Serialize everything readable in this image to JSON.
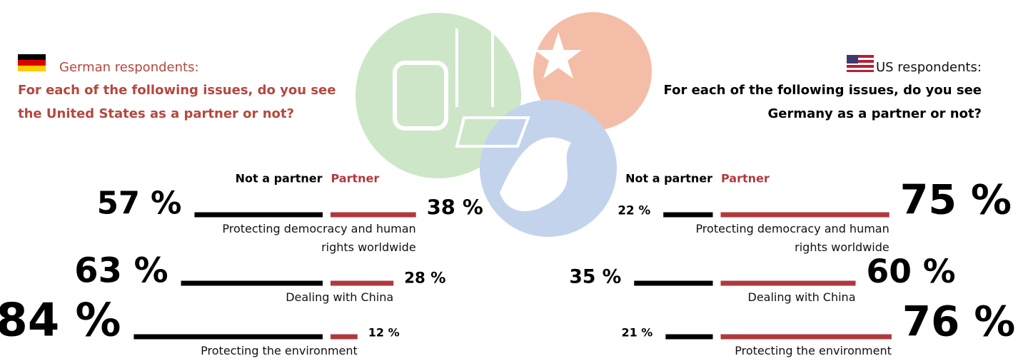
{
  "chart_data": [
    {
      "type": "bar",
      "subtitle": "German respondents:",
      "title": "For each of the following issues, do you see the United States as a partner or not?",
      "categories": [
        "Protecting democracy and human rights worldwide",
        "Dealing with China",
        "Protecting the environment"
      ],
      "series": [
        {
          "name": "Not a partner",
          "color": "#000000",
          "values": [
            57,
            63,
            84
          ],
          "value_labels": [
            "57 %",
            "63 %",
            "84 %"
          ]
        },
        {
          "name": "Partner",
          "color": "#b0393d",
          "values": [
            38,
            28,
            12
          ],
          "value_labels": [
            "38 %",
            "28 %",
            "12 %"
          ]
        }
      ]
    },
    {
      "type": "bar",
      "subtitle": "US respondents:",
      "title": "For each of the following issues, do you see Germany as a partner or not?",
      "categories": [
        "Protecting democracy and human rights worldwide",
        "Dealing with China",
        "Protecting the environment"
      ],
      "series": [
        {
          "name": "Not a partner",
          "color": "#000000",
          "values": [
            22,
            35,
            21
          ],
          "value_labels": [
            "22 %",
            "35 %",
            "21 %"
          ]
        },
        {
          "name": "Partner",
          "color": "#b0393d",
          "values": [
            75,
            60,
            76
          ],
          "value_labels": [
            "75 %",
            "60 %",
            "76 %"
          ]
        }
      ]
    }
  ]
}
